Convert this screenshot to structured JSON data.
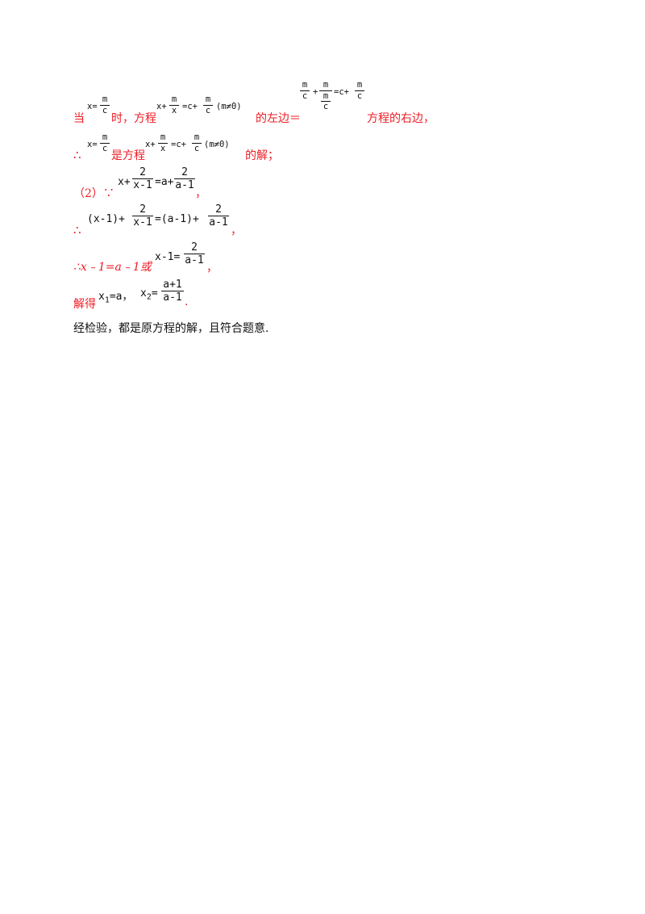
{
  "l1": {
    "prefix": "当",
    "x_eq": "x=",
    "frac_m": "m",
    "frac_c": "c",
    "t1": "时，方程",
    "eq_x_plus": "x+",
    "eq_x": "x",
    "eq_eq_c_plus": "=c+",
    "cond": "(m≠0)",
    "t2": "的左边＝",
    "big_plus": "+",
    "big_eq_c_plus": "=c+",
    "t3": "方程的右边，"
  },
  "l2": {
    "therefore": "∴",
    "x_eq": "x=",
    "t1": "是方程",
    "eq_x_plus": "x+",
    "eq_x": "x",
    "eq_eq_c_plus": "=c+",
    "cond": "(m≠0)",
    "t2": "的解；"
  },
  "l3": {
    "label": "（2）∵",
    "x_plus": "x+",
    "two": "2",
    "x_minus_1": "x-1",
    "eq_a_plus": "=a+",
    "a_minus_1": "a-1",
    "end": "，"
  },
  "l4": {
    "therefore": "∴",
    "lhs": "(x-1)+",
    "two": "2",
    "x_minus_1": "x-1",
    "rhs": "=(a-1)+",
    "a_minus_1": "a-1",
    "end": "，"
  },
  "l5": {
    "text_before": "∴x﹣1=a﹣1或",
    "lhs": "x-1=",
    "two": "2",
    "a_minus_1": "a-1",
    "end": "，"
  },
  "l6": {
    "label": "解得",
    "x": "x",
    "sub1": "1",
    "eq_a": "=a，",
    "sub2": "2",
    "eq": "=",
    "num": "a+1",
    "den": "a-1",
    "end": "."
  },
  "l7": {
    "text": "经检验，都是原方程的解，且符合题意."
  }
}
